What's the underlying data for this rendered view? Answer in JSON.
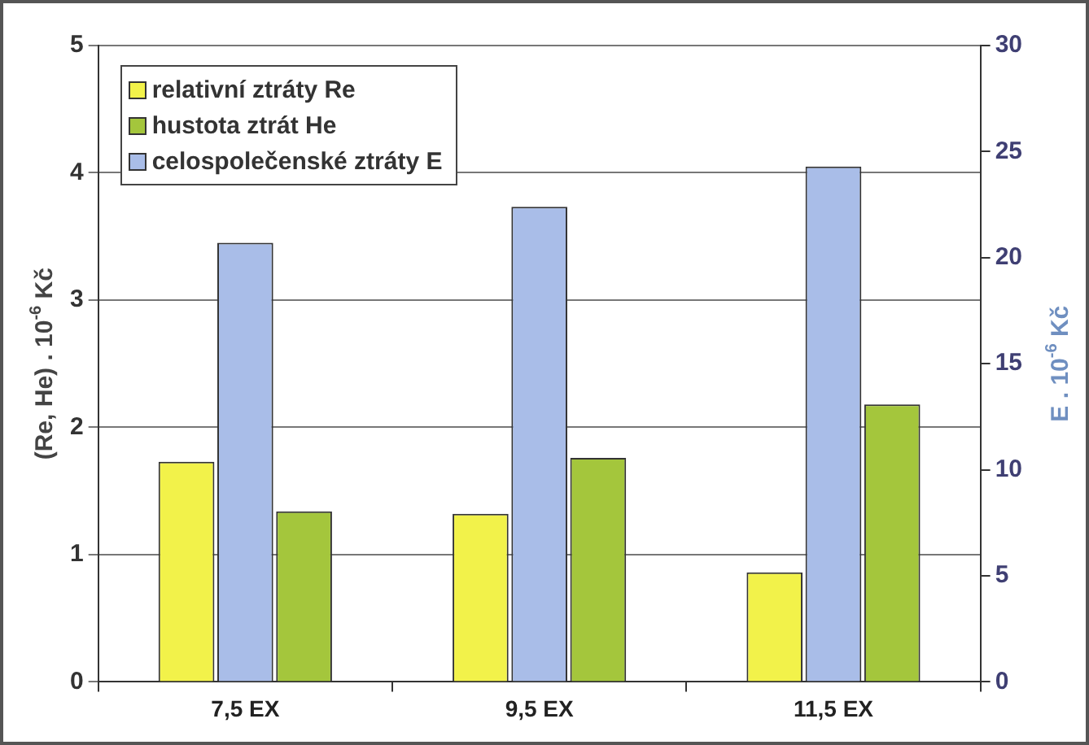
{
  "chart_data": {
    "type": "bar",
    "categories": [
      "7,5 EX",
      "9,5 EX",
      "11,5 EX"
    ],
    "series": [
      {
        "name": "relativní ztráty Re",
        "color": "#f2f24a",
        "values": [
          1.73,
          1.32,
          0.86
        ]
      },
      {
        "name": "celospolečenské ztráty E",
        "color": "#a9bde8",
        "values": [
          20.7,
          22.4,
          24.3
        ],
        "axis": "y2"
      },
      {
        "name": "hustota ztrát He",
        "color": "#a4c63c",
        "values": [
          1.34,
          1.76,
          2.18
        ]
      }
    ],
    "ylabel": "(Re, He) . 10$^{-6}$ Kč",
    "y2label": "E . 10$^{-6}$ Kč",
    "ylim": [
      0,
      5
    ],
    "yticks": [
      0,
      1,
      2,
      3,
      4,
      5
    ],
    "y2lim": [
      0,
      30
    ],
    "y2ticks": [
      0,
      5,
      10,
      15,
      20,
      25,
      30
    ],
    "grid": "y",
    "legend": "top left"
  }
}
